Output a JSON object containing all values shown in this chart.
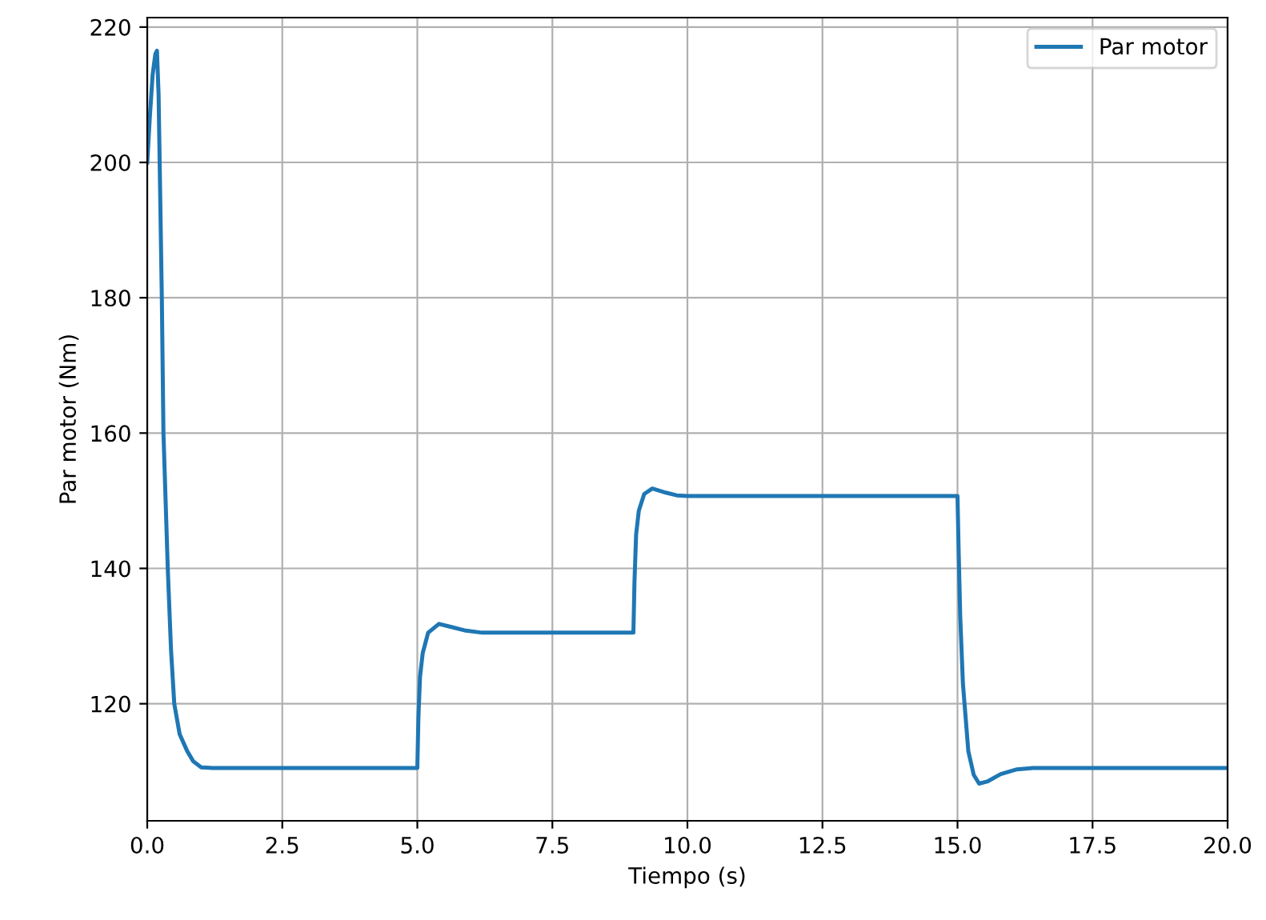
{
  "chart_data": {
    "type": "line",
    "xlabel": "Tiempo (s)",
    "ylabel": "Par motor (Nm)",
    "xlim": [
      0,
      20
    ],
    "ylim": [
      102.7,
      221.4
    ],
    "xticks": [
      {
        "value": 0,
        "label": "0.0"
      },
      {
        "value": 2.5,
        "label": "2.5"
      },
      {
        "value": 5,
        "label": "5.0"
      },
      {
        "value": 7.5,
        "label": "7.5"
      },
      {
        "value": 10,
        "label": "10.0"
      },
      {
        "value": 12.5,
        "label": "12.5"
      },
      {
        "value": 15,
        "label": "15.0"
      },
      {
        "value": 17.5,
        "label": "17.5"
      },
      {
        "value": 20,
        "label": "20.0"
      }
    ],
    "yticks": [
      120,
      140,
      160,
      180,
      200,
      220
    ],
    "grid": true,
    "legend": "top right",
    "series": [
      {
        "name": "Par motor",
        "color": "#1f77b4",
        "x": [
          0,
          0.05,
          0.1,
          0.15,
          0.18,
          0.21,
          0.24,
          0.27,
          0.3,
          0.34,
          0.38,
          0.44,
          0.5,
          0.6,
          0.74,
          0.85,
          1.0,
          1.2,
          1.5,
          2.5,
          5.0,
          5.02,
          5.05,
          5.1,
          5.2,
          5.4,
          5.6,
          5.9,
          6.2,
          7.0,
          9.0,
          9.02,
          9.05,
          9.1,
          9.2,
          9.35,
          9.6,
          9.8,
          10.0,
          12.5,
          15.0,
          15.02,
          15.05,
          15.1,
          15.2,
          15.3,
          15.4,
          15.55,
          15.8,
          16.1,
          16.4,
          17.5,
          20.0
        ],
        "values": [
          200,
          207,
          213,
          216,
          216.5,
          210,
          195,
          180,
          160,
          150,
          140,
          128,
          120,
          115.5,
          113,
          111.5,
          110.6,
          110.5,
          110.5,
          110.5,
          110.5,
          118,
          124,
          127.5,
          130.5,
          131.8,
          131.4,
          130.8,
          130.5,
          130.5,
          130.5,
          138,
          145,
          148.5,
          151,
          151.8,
          151.2,
          150.8,
          150.7,
          150.7,
          150.7,
          143,
          133,
          123,
          113,
          109.5,
          108.2,
          108.5,
          109.6,
          110.3,
          110.5,
          110.5,
          110.5
        ]
      }
    ]
  }
}
